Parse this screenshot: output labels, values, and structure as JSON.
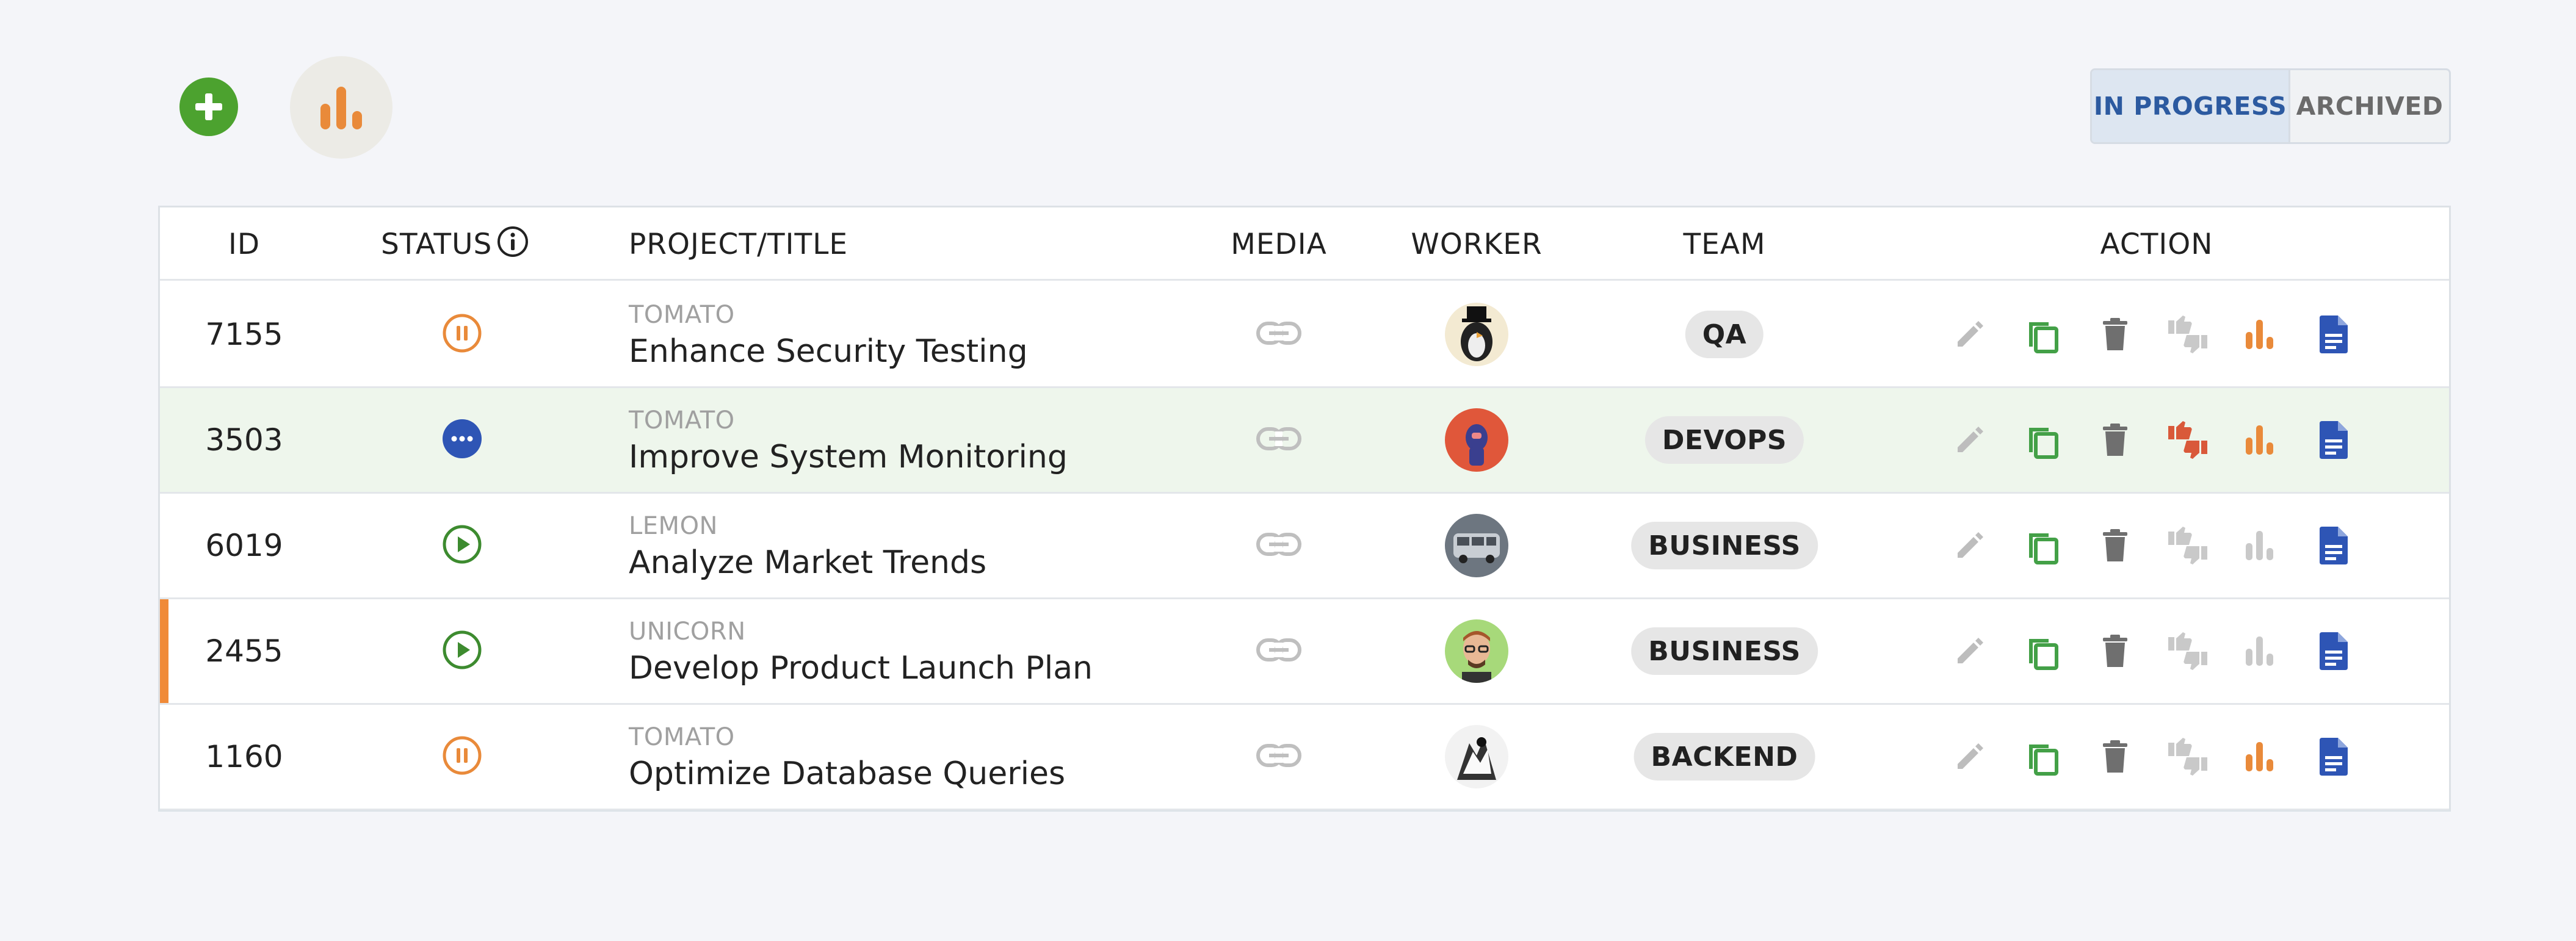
{
  "toolbar": {
    "add_icon": "plus-circle-icon",
    "stats_icon": "bar-chart-icon",
    "toggle": {
      "active_label": "IN PROGRESS",
      "inactive_label": "ARCHIVED"
    }
  },
  "colors": {
    "accent_blue": "#2c5aa0",
    "add_green": "#4ca22f",
    "copy_green": "#43a047",
    "doc_blue": "#2e55b5",
    "chart_orange": "#e98a3a",
    "disliked_red": "#d9593a",
    "muted_gray": "#c9c9c9",
    "row_highlight": "#eef6ec",
    "row_flag": "#f08a38"
  },
  "table": {
    "headers": {
      "id": "ID",
      "status": "STATUS",
      "project": "PROJECT/TITLE",
      "media": "MEDIA",
      "worker": "WORKER",
      "team": "TEAM",
      "action": "ACTION"
    },
    "rows": [
      {
        "id": "7155",
        "status": "paused",
        "tag": "TOMATO",
        "title": "Enhance Security Testing",
        "team": "QA",
        "thumbs_active": false,
        "chart_active": true,
        "highlight": false,
        "flag": false,
        "avatar": "penguin-top-hat"
      },
      {
        "id": "3503",
        "status": "more",
        "tag": "TOMATO",
        "title": "Improve System Monitoring",
        "team": "DEVOPS",
        "thumbs_active": true,
        "chart_active": true,
        "highlight": true,
        "flag": false,
        "avatar": "astronaut-red"
      },
      {
        "id": "6019",
        "status": "playing",
        "tag": "LEMON",
        "title": "Analyze Market Trends",
        "team": "BUSINESS",
        "thumbs_active": false,
        "chart_active": false,
        "highlight": false,
        "flag": false,
        "avatar": "bus-gray"
      },
      {
        "id": "2455",
        "status": "playing",
        "tag": "UNICORN",
        "title": "Develop Product Launch Plan",
        "team": "BUSINESS",
        "thumbs_active": false,
        "chart_active": false,
        "highlight": false,
        "flag": true,
        "avatar": "man-glasses"
      },
      {
        "id": "1160",
        "status": "paused",
        "tag": "TOMATO",
        "title": "Optimize Database Queries",
        "team": "BACKEND",
        "thumbs_active": false,
        "chart_active": true,
        "highlight": false,
        "flag": false,
        "avatar": "sketch-bw"
      }
    ],
    "action_icons": [
      "edit-icon",
      "copy-icon",
      "delete-icon",
      "thumbs-icon",
      "bar-chart-icon",
      "document-icon"
    ]
  }
}
